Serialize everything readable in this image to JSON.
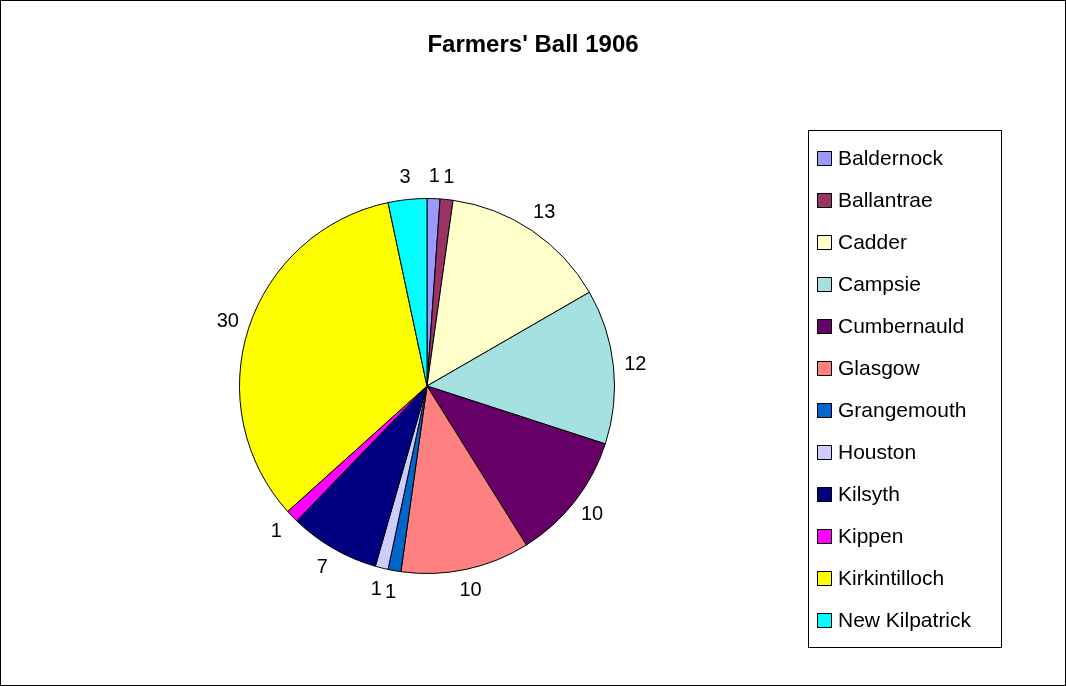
{
  "chart_data": {
    "type": "pie",
    "title": "Farmers' Ball 1906",
    "categories": [
      "Baldernock",
      "Ballantrae",
      "Cadder",
      "Campsie",
      "Cumbernauld",
      "Glasgow",
      "Grangemouth",
      "Houston",
      "Kilsyth",
      "Kippen",
      "Kirkintilloch",
      "New Kilpatrick"
    ],
    "values": [
      1,
      1,
      13,
      12,
      10,
      10,
      1,
      1,
      7,
      1,
      30,
      3
    ],
    "colors": [
      "#9999ff",
      "#993366",
      "#ffffcc",
      "#a6e1e1",
      "#660066",
      "#ff8080",
      "#0066cc",
      "#ccccff",
      "#000080",
      "#ff00ff",
      "#ffff00",
      "#00ffff"
    ],
    "data_labels": true,
    "legend": "right"
  }
}
